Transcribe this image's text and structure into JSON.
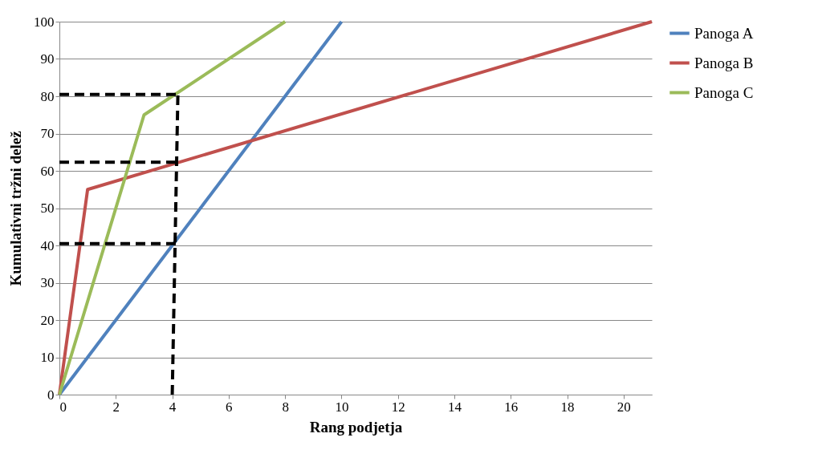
{
  "chart_data": {
    "type": "line",
    "xlabel": "Rang podjetja",
    "ylabel": "Kumulativni tržni delež",
    "xlim": [
      0,
      21
    ],
    "xticks": [
      0,
      2,
      4,
      6,
      8,
      10,
      12,
      14,
      16,
      18,
      20
    ],
    "ylim": [
      0,
      100
    ],
    "yticks": [
      0,
      10,
      20,
      30,
      40,
      50,
      60,
      70,
      80,
      90,
      100
    ],
    "grid": "y",
    "legend": "right",
    "marker": "none",
    "series": [
      {
        "name": "Panoga A",
        "color": "#4f81bd",
        "x": [
          0,
          10
        ],
        "values": [
          0,
          100
        ]
      },
      {
        "name": "Panoga B",
        "color": "#c0504d",
        "x": [
          0,
          1,
          21
        ],
        "values": [
          0,
          55,
          100
        ]
      },
      {
        "name": "Panoga C",
        "color": "#9bbb59",
        "x": [
          0,
          3,
          8
        ],
        "values": [
          0,
          75,
          100
        ]
      },
      {
        "color": "#000000",
        "line_style": "dashed",
        "x": [
          0,
          4.2
        ],
        "values": [
          80.5,
          80.5
        ]
      },
      {
        "color": "#000000",
        "line_style": "dashed",
        "x": [
          0,
          4.2
        ],
        "values": [
          62.3,
          62.3
        ]
      },
      {
        "color": "#000000",
        "line_style": "dashed",
        "x": [
          0,
          4.2
        ],
        "values": [
          40.5,
          40.5
        ]
      },
      {
        "color": "#000000",
        "line_style": "dashed",
        "x": [
          4,
          4.2
        ],
        "values": [
          0,
          80.5
        ]
      }
    ]
  }
}
